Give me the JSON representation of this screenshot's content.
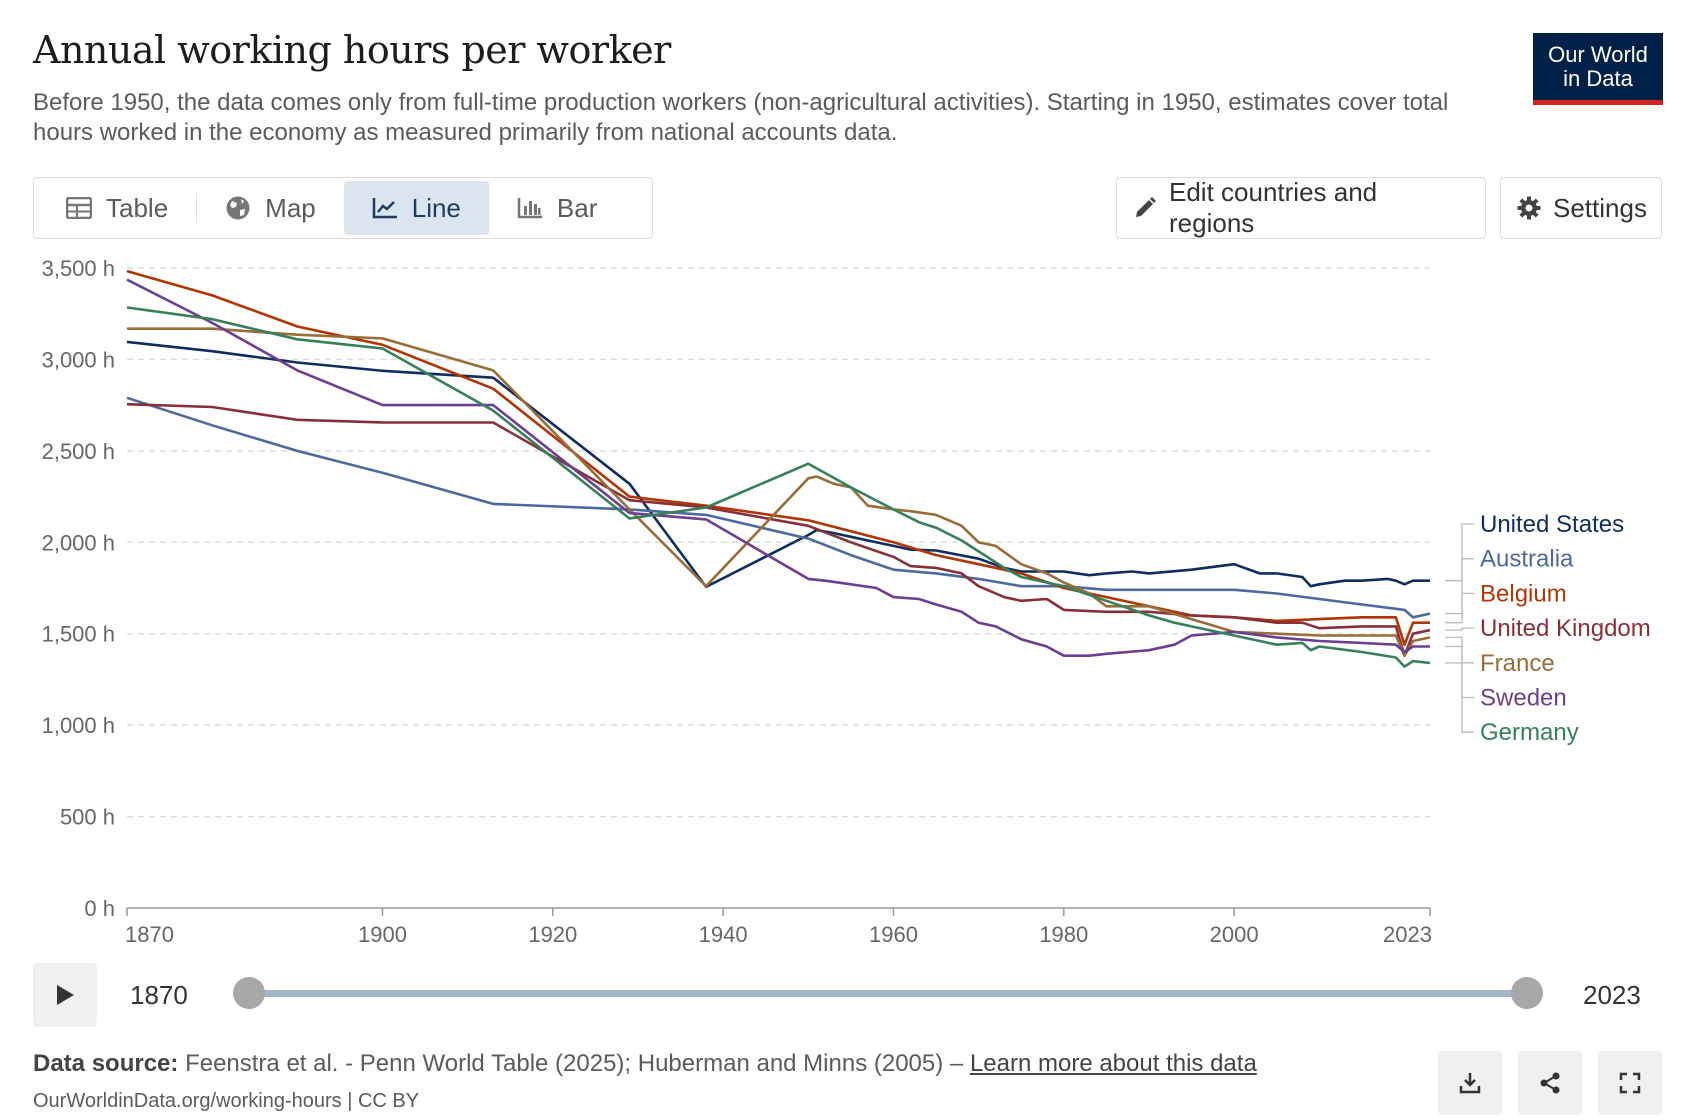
{
  "header": {
    "title": "Annual working hours per worker",
    "subtitle": "Before 1950, the data comes only from full-time production workers (non-agricultural activities). Starting in 1950, estimates cover total hours worked in the economy as measured primarily from national accounts data.",
    "logo_line1": "Our World",
    "logo_line2": "in Data"
  },
  "toolbar": {
    "tabs": [
      {
        "label": "Table",
        "icon": "table-icon"
      },
      {
        "label": "Map",
        "icon": "globe-icon"
      },
      {
        "label": "Line",
        "icon": "line-chart-icon",
        "active": true
      },
      {
        "label": "Bar",
        "icon": "bar-chart-icon"
      }
    ],
    "edit_label": "Edit countries and regions",
    "settings_label": "Settings"
  },
  "timeline": {
    "start": "1870",
    "end": "2023"
  },
  "footer": {
    "source_label": "Data source:",
    "source_text": "Feenstra et al. - Penn World Table (2025); Huberman and Minns (2005) –",
    "learn_more": "Learn more about this data",
    "url": "OurWorldinData.org/working-hours | CC BY"
  },
  "chart_data": {
    "type": "line",
    "xlim": [
      1870,
      2023
    ],
    "ylim": [
      0,
      3500
    ],
    "y_ticks": [
      0,
      500,
      1000,
      1500,
      2000,
      2500,
      3000,
      3500
    ],
    "y_tick_labels": [
      "0 h",
      "500 h",
      "1,000 h",
      "1,500 h",
      "2,000 h",
      "2,500 h",
      "3,000 h",
      "3,500 h"
    ],
    "x_ticks": [
      1870,
      1900,
      1920,
      1940,
      1960,
      1980,
      2000,
      2023
    ],
    "grid": "horizontal dashed",
    "legend": "right, labels at line ends",
    "series": [
      {
        "name": "United States",
        "color": "#0f2d5e",
        "x": [
          1870,
          1880,
          1890,
          1900,
          1913,
          1929,
          1938,
          1950,
          1951,
          1953,
          1955,
          1957,
          1960,
          1962,
          1965,
          1970,
          1973,
          1975,
          1980,
          1983,
          1985,
          1988,
          1990,
          1995,
          2000,
          2003,
          2005,
          2008,
          2009,
          2010,
          2013,
          2015,
          2018,
          2019,
          2020,
          2021,
          2023
        ],
        "y": [
          3096,
          3045,
          2983,
          2938,
          2900,
          2320,
          1756,
          2040,
          2067,
          2050,
          2030,
          2010,
          1980,
          1960,
          1955,
          1910,
          1860,
          1840,
          1840,
          1820,
          1830,
          1840,
          1830,
          1850,
          1880,
          1830,
          1830,
          1810,
          1760,
          1770,
          1790,
          1790,
          1800,
          1790,
          1770,
          1790,
          1790
        ]
      },
      {
        "name": "Australia",
        "color": "#4c6a9c",
        "x": [
          1870,
          1880,
          1890,
          1900,
          1913,
          1929,
          1938,
          1950,
          1955,
          1960,
          1965,
          1970,
          1975,
          1980,
          1985,
          1990,
          1995,
          2000,
          2005,
          2010,
          2015,
          2020,
          2021,
          2023
        ],
        "y": [
          2790,
          2640,
          2500,
          2380,
          2210,
          2180,
          2150,
          2020,
          1930,
          1850,
          1830,
          1800,
          1760,
          1760,
          1740,
          1740,
          1740,
          1740,
          1720,
          1690,
          1660,
          1630,
          1590,
          1610
        ]
      },
      {
        "name": "Belgium",
        "color": "#b13507",
        "x": [
          1870,
          1880,
          1890,
          1900,
          1913,
          1929,
          1938,
          1950,
          1955,
          1960,
          1965,
          1970,
          1975,
          1980,
          1985,
          1990,
          1995,
          2000,
          2005,
          2010,
          2015,
          2019,
          2020,
          2021,
          2023
        ],
        "y": [
          3483,
          3350,
          3180,
          3080,
          2840,
          2250,
          2200,
          2120,
          2060,
          2000,
          1930,
          1880,
          1830,
          1750,
          1700,
          1650,
          1600,
          1590,
          1570,
          1580,
          1590,
          1590,
          1440,
          1560,
          1560
        ]
      },
      {
        "name": "United Kingdom",
        "color": "#883039",
        "x": [
          1870,
          1880,
          1890,
          1900,
          1913,
          1929,
          1938,
          1950,
          1955,
          1960,
          1962,
          1965,
          1968,
          1970,
          1973,
          1975,
          1978,
          1980,
          1985,
          1990,
          1995,
          2000,
          2005,
          2008,
          2010,
          2015,
          2019,
          2020,
          2021,
          2023
        ],
        "y": [
          2755,
          2740,
          2670,
          2655,
          2655,
          2230,
          2190,
          2090,
          2000,
          1920,
          1870,
          1860,
          1830,
          1760,
          1700,
          1680,
          1690,
          1630,
          1620,
          1620,
          1600,
          1590,
          1560,
          1560,
          1530,
          1540,
          1540,
          1380,
          1500,
          1520
        ]
      },
      {
        "name": "France",
        "color": "#996d39",
        "x": [
          1870,
          1880,
          1890,
          1900,
          1913,
          1929,
          1938,
          1950,
          1951,
          1953,
          1955,
          1957,
          1960,
          1962,
          1965,
          1968,
          1970,
          1972,
          1975,
          1978,
          1980,
          1983,
          1985,
          1990,
          1995,
          2000,
          2005,
          2010,
          2015,
          2019,
          2020,
          2021,
          2023
        ],
        "y": [
          3168,
          3168,
          3135,
          3115,
          2940,
          2180,
          1760,
          2350,
          2360,
          2320,
          2300,
          2200,
          2180,
          2170,
          2150,
          2090,
          2000,
          1980,
          1880,
          1830,
          1780,
          1720,
          1650,
          1650,
          1580,
          1510,
          1500,
          1490,
          1490,
          1490,
          1380,
          1460,
          1480
        ]
      },
      {
        "name": "Sweden",
        "color": "#6d3e91",
        "x": [
          1870,
          1880,
          1890,
          1900,
          1913,
          1929,
          1938,
          1950,
          1952,
          1955,
          1958,
          1960,
          1963,
          1965,
          1968,
          1970,
          1972,
          1975,
          1978,
          1980,
          1983,
          1985,
          1990,
          1993,
          1995,
          2000,
          2005,
          2010,
          2015,
          2019,
          2020,
          2021,
          2023
        ],
        "y": [
          3436,
          3200,
          2940,
          2750,
          2750,
          2160,
          2125,
          1800,
          1790,
          1770,
          1750,
          1700,
          1690,
          1660,
          1620,
          1560,
          1540,
          1470,
          1430,
          1380,
          1380,
          1390,
          1410,
          1440,
          1490,
          1510,
          1480,
          1460,
          1450,
          1440,
          1400,
          1430,
          1430
        ]
      },
      {
        "name": "Germany",
        "color": "#38805c",
        "x": [
          1870,
          1880,
          1890,
          1900,
          1913,
          1929,
          1938,
          1950,
          1955,
          1960,
          1963,
          1965,
          1968,
          1970,
          1973,
          1975,
          1978,
          1980,
          1985,
          1990,
          1993,
          1995,
          2000,
          2005,
          2008,
          2009,
          2010,
          2015,
          2019,
          2020,
          2021,
          2023
        ],
        "y": [
          3284,
          3220,
          3110,
          3060,
          2720,
          2130,
          2190,
          2430,
          2300,
          2180,
          2110,
          2080,
          2010,
          1950,
          1860,
          1810,
          1780,
          1760,
          1680,
          1600,
          1560,
          1540,
          1490,
          1440,
          1450,
          1410,
          1430,
          1400,
          1370,
          1320,
          1350,
          1340
        ]
      }
    ]
  }
}
